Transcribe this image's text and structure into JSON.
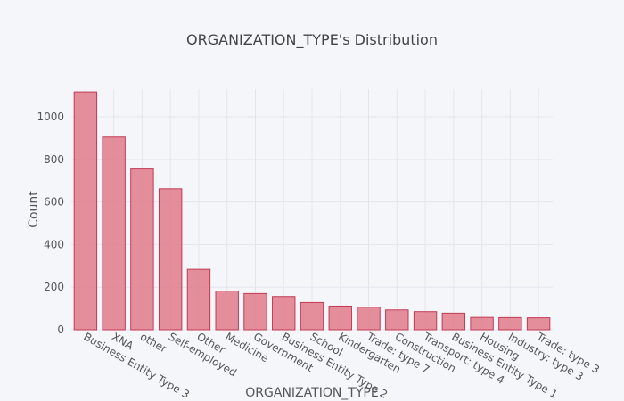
{
  "chart_data": {
    "type": "bar",
    "title": "ORGANIZATION_TYPE's Distribution",
    "xlabel": "ORGANIZATION_TYPE",
    "ylabel": "Count",
    "ylim": [
      0,
      1130
    ],
    "yticks": [
      0,
      200,
      400,
      600,
      800,
      1000
    ],
    "grid": true,
    "categories": [
      "Business Entity Type 3",
      "XNA",
      "other",
      "Self-employed",
      "Other",
      "Medicine",
      "Government",
      "Business Entity Type 2",
      "School",
      "Kindergarten",
      "Trade: type 7",
      "Construction",
      "Transport: type 4",
      "Business Entity Type 1",
      "Housing",
      "Industry: type 3",
      "Trade: type 3"
    ],
    "values": [
      1117,
      905,
      755,
      662,
      284,
      182,
      170,
      156,
      128,
      111,
      106,
      93,
      85,
      78,
      58,
      57,
      56
    ],
    "colors": {
      "bar_fill": "#e07b8a",
      "bar_stroke": "#c23a54",
      "background": "#f5f6fa"
    }
  }
}
